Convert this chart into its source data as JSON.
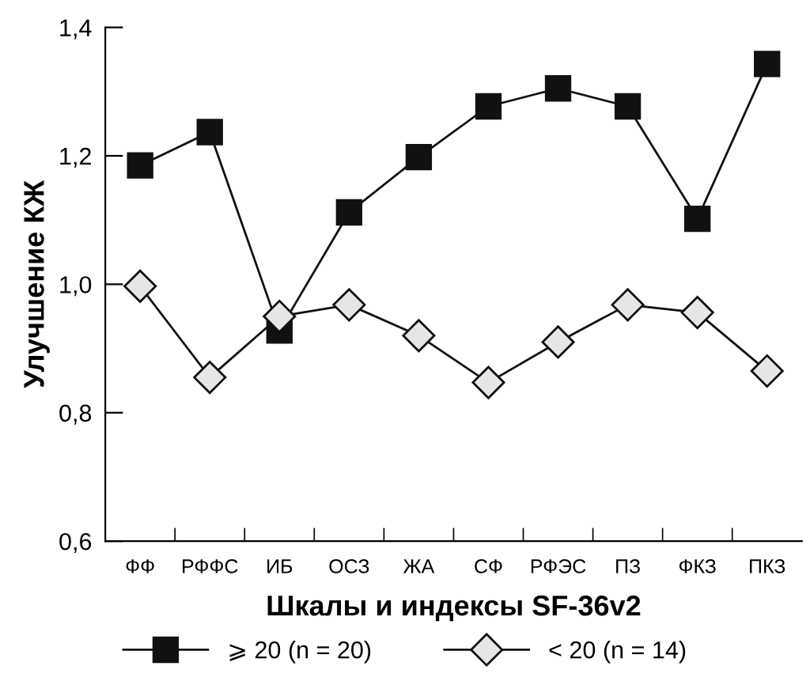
{
  "chart_data": {
    "type": "line",
    "xlabel": "Шкалы и индексы SF-36v2",
    "ylabel": "Улучшение КЖ",
    "categories": [
      "ФФ",
      "РФФС",
      "ИБ",
      "ОСЗ",
      "ЖА",
      "СФ",
      "РФЭС",
      "ПЗ",
      "ФКЗ",
      "ПКЗ"
    ],
    "series": [
      {
        "name": "⩾ 20 (n = 20)",
        "color": "#111111",
        "marker": "square",
        "values": [
          1.185,
          1.237,
          0.928,
          1.112,
          1.198,
          1.277,
          1.305,
          1.277,
          1.102,
          1.343
        ]
      },
      {
        "name": "< 20 (n = 14)",
        "color": "#e6e6e6",
        "marker": "diamond",
        "values": [
          0.997,
          0.855,
          0.95,
          0.968,
          0.92,
          0.847,
          0.91,
          0.968,
          0.956,
          0.865
        ]
      }
    ],
    "ylim": [
      0.6,
      1.4
    ],
    "yticks": [
      {
        "value": 0.6,
        "label": "0,6"
      },
      {
        "value": 0.8,
        "label": "0,8"
      },
      {
        "value": 1.0,
        "label": "1,0"
      },
      {
        "value": 1.2,
        "label": "1,2"
      },
      {
        "value": 1.4,
        "label": "1,4"
      }
    ],
    "grid": false,
    "legend": "bottom",
    "line_style": "solid"
  }
}
